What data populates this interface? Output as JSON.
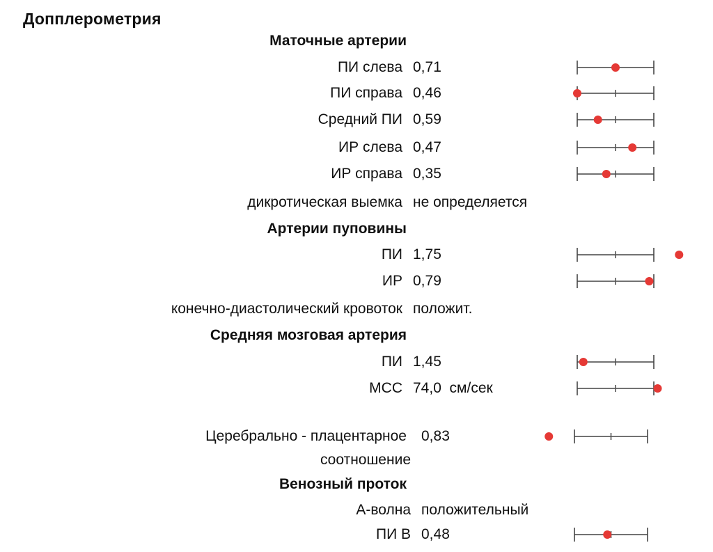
{
  "title": "Допплерометрия",
  "accent_color": "#e53935",
  "rows": [
    {
      "kind": "section",
      "label": "Маточные артерии"
    },
    {
      "kind": "item",
      "label": "ПИ слева",
      "value": "0,71",
      "marker": 0.5
    },
    {
      "kind": "item",
      "label": "ПИ справа",
      "value": "0,46",
      "marker": 0.0
    },
    {
      "kind": "item",
      "label": "Средний ПИ",
      "value": "0,59",
      "marker": 0.27
    },
    {
      "kind": "item",
      "label": "ИР слева",
      "value": "0,47",
      "marker": 0.72
    },
    {
      "kind": "item",
      "label": "ИР справа",
      "value": "0,35",
      "marker": 0.38
    },
    {
      "kind": "item",
      "label": "дикротическая выемка",
      "value": "не определяется"
    },
    {
      "kind": "section",
      "label": "Артерии пуповины"
    },
    {
      "kind": "item",
      "label": "ПИ",
      "value": "1,75",
      "marker": 1.33
    },
    {
      "kind": "item",
      "label": "ИР",
      "value": "0,79",
      "marker": 0.94
    },
    {
      "kind": "item",
      "label": "конечно-диастолический кровоток",
      "value": "положит."
    },
    {
      "kind": "section",
      "label": "Средняя мозговая артерия"
    },
    {
      "kind": "item",
      "label": "ПИ",
      "value": "1,45",
      "marker": 0.08
    },
    {
      "kind": "item",
      "label": "МСС",
      "value": "74,0  см/сек",
      "marker": 1.05
    }
  ],
  "cpr": {
    "label_line1": "Церебрально - плацентарное",
    "label_line2": "соотношение",
    "value": "0,83",
    "marker": -0.35
  },
  "venous_duct": {
    "section": "Венозный проток",
    "a_wave": {
      "label": "А-волна",
      "value": "положительный"
    },
    "pi_v": {
      "label": "ПИ В",
      "value": "0,48",
      "marker": 0.45
    }
  }
}
